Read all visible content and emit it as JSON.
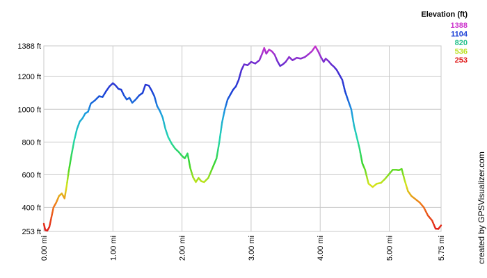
{
  "chart_data": {
    "type": "line",
    "title": "",
    "xlabel": "",
    "ylabel": "",
    "xlim": [
      0,
      5.75
    ],
    "ylim": [
      253,
      1388
    ],
    "x_ticks": [
      {
        "value": 0,
        "label": "0.00 mi"
      },
      {
        "value": 1,
        "label": "1.00 mi"
      },
      {
        "value": 2,
        "label": "2.00 mi"
      },
      {
        "value": 3,
        "label": "3.00 mi"
      },
      {
        "value": 4,
        "label": "4.00 mi"
      },
      {
        "value": 5,
        "label": "5.00 mi"
      },
      {
        "value": 5.75,
        "label": "5.75 mi"
      }
    ],
    "y_ticks": [
      {
        "value": 253,
        "label": "253 ft"
      },
      {
        "value": 400,
        "label": "400 ft"
      },
      {
        "value": 600,
        "label": "600 ft"
      },
      {
        "value": 800,
        "label": "800 ft"
      },
      {
        "value": 1000,
        "label": "1000 ft"
      },
      {
        "value": 1200,
        "label": "1200 ft"
      },
      {
        "value": 1388,
        "label": "1388 ft"
      }
    ],
    "grid": true,
    "legend": {
      "title": "Elevation (ft)",
      "placement": "top-right",
      "entries": [
        {
          "label": "1388",
          "color": "#cc33cc"
        },
        {
          "label": "1104",
          "color": "#1a3fd6"
        },
        {
          "label": "820",
          "color": "#22c08a"
        },
        {
          "label": "536",
          "color": "#b8e01a"
        },
        {
          "label": "253",
          "color": "#e01a1a"
        }
      ]
    },
    "color_scale": [
      {
        "value": 253,
        "color": "#e01a1a"
      },
      {
        "value": 420,
        "color": "#f07a1a"
      },
      {
        "value": 536,
        "color": "#d6e51a"
      },
      {
        "value": 660,
        "color": "#3ad62a"
      },
      {
        "value": 820,
        "color": "#22d6b0"
      },
      {
        "value": 980,
        "color": "#1a9be0"
      },
      {
        "value": 1104,
        "color": "#1a3fd6"
      },
      {
        "value": 1240,
        "color": "#4a2ad0"
      },
      {
        "value": 1388,
        "color": "#cc33cc"
      }
    ],
    "series": [
      {
        "points": [
          [
            0.0,
            300
          ],
          [
            0.02,
            262
          ],
          [
            0.05,
            258
          ],
          [
            0.08,
            280
          ],
          [
            0.11,
            340
          ],
          [
            0.14,
            400
          ],
          [
            0.18,
            430
          ],
          [
            0.22,
            470
          ],
          [
            0.26,
            485
          ],
          [
            0.3,
            455
          ],
          [
            0.33,
            530
          ],
          [
            0.36,
            620
          ],
          [
            0.4,
            720
          ],
          [
            0.44,
            810
          ],
          [
            0.48,
            880
          ],
          [
            0.52,
            925
          ],
          [
            0.56,
            945
          ],
          [
            0.6,
            975
          ],
          [
            0.64,
            985
          ],
          [
            0.68,
            1035
          ],
          [
            0.74,
            1055
          ],
          [
            0.8,
            1080
          ],
          [
            0.85,
            1075
          ],
          [
            0.9,
            1110
          ],
          [
            0.95,
            1140
          ],
          [
            1.0,
            1160
          ],
          [
            1.04,
            1145
          ],
          [
            1.08,
            1125
          ],
          [
            1.12,
            1120
          ],
          [
            1.16,
            1085
          ],
          [
            1.2,
            1060
          ],
          [
            1.24,
            1070
          ],
          [
            1.28,
            1040
          ],
          [
            1.33,
            1060
          ],
          [
            1.38,
            1085
          ],
          [
            1.43,
            1100
          ],
          [
            1.47,
            1150
          ],
          [
            1.52,
            1145
          ],
          [
            1.56,
            1115
          ],
          [
            1.6,
            1080
          ],
          [
            1.64,
            1020
          ],
          [
            1.68,
            990
          ],
          [
            1.72,
            950
          ],
          [
            1.76,
            880
          ],
          [
            1.8,
            830
          ],
          [
            1.85,
            790
          ],
          [
            1.9,
            760
          ],
          [
            1.95,
            740
          ],
          [
            2.0,
            715
          ],
          [
            2.04,
            700
          ],
          [
            2.08,
            730
          ],
          [
            2.12,
            640
          ],
          [
            2.16,
            585
          ],
          [
            2.2,
            555
          ],
          [
            2.24,
            580
          ],
          [
            2.28,
            560
          ],
          [
            2.32,
            555
          ],
          [
            2.38,
            580
          ],
          [
            2.44,
            640
          ],
          [
            2.5,
            700
          ],
          [
            2.54,
            800
          ],
          [
            2.58,
            920
          ],
          [
            2.62,
            1000
          ],
          [
            2.66,
            1060
          ],
          [
            2.7,
            1090
          ],
          [
            2.74,
            1120
          ],
          [
            2.78,
            1140
          ],
          [
            2.82,
            1180
          ],
          [
            2.86,
            1240
          ],
          [
            2.9,
            1275
          ],
          [
            2.95,
            1270
          ],
          [
            3.0,
            1290
          ],
          [
            3.06,
            1280
          ],
          [
            3.12,
            1300
          ],
          [
            3.16,
            1340
          ],
          [
            3.19,
            1375
          ],
          [
            3.22,
            1340
          ],
          [
            3.26,
            1365
          ],
          [
            3.3,
            1355
          ],
          [
            3.34,
            1335
          ],
          [
            3.38,
            1295
          ],
          [
            3.42,
            1265
          ],
          [
            3.46,
            1275
          ],
          [
            3.5,
            1290
          ],
          [
            3.55,
            1320
          ],
          [
            3.6,
            1300
          ],
          [
            3.66,
            1315
          ],
          [
            3.72,
            1310
          ],
          [
            3.78,
            1320
          ],
          [
            3.84,
            1340
          ],
          [
            3.88,
            1355
          ],
          [
            3.93,
            1385
          ],
          [
            3.97,
            1355
          ],
          [
            4.01,
            1320
          ],
          [
            4.05,
            1290
          ],
          [
            4.08,
            1310
          ],
          [
            4.12,
            1295
          ],
          [
            4.16,
            1275
          ],
          [
            4.2,
            1260
          ],
          [
            4.24,
            1240
          ],
          [
            4.28,
            1210
          ],
          [
            4.32,
            1180
          ],
          [
            4.36,
            1110
          ],
          [
            4.4,
            1060
          ],
          [
            4.45,
            1000
          ],
          [
            4.49,
            900
          ],
          [
            4.53,
            830
          ],
          [
            4.57,
            760
          ],
          [
            4.61,
            670
          ],
          [
            4.65,
            630
          ],
          [
            4.7,
            545
          ],
          [
            4.76,
            525
          ],
          [
            4.82,
            545
          ],
          [
            4.88,
            550
          ],
          [
            4.94,
            575
          ],
          [
            5.0,
            605
          ],
          [
            5.05,
            630
          ],
          [
            5.1,
            630
          ],
          [
            5.14,
            628
          ],
          [
            5.18,
            635
          ],
          [
            5.22,
            570
          ],
          [
            5.27,
            500
          ],
          [
            5.32,
            470
          ],
          [
            5.38,
            450
          ],
          [
            5.44,
            430
          ],
          [
            5.5,
            400
          ],
          [
            5.56,
            350
          ],
          [
            5.62,
            320
          ],
          [
            5.67,
            270
          ],
          [
            5.71,
            268
          ],
          [
            5.75,
            290
          ]
        ]
      }
    ],
    "credit": "created by GPSVisualizer.com"
  }
}
